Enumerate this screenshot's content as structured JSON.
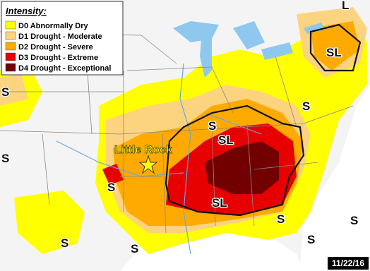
{
  "legend": {
    "title": "Intensity:",
    "items": [
      {
        "label": "D0 Abnormally Dry",
        "color": "#ffff00"
      },
      {
        "label": "D1 Drought - Moderate",
        "color": "#fcd37f"
      },
      {
        "label": "D2 Drought - Severe",
        "color": "#ffaa00"
      },
      {
        "label": "D3 Drought - Extreme",
        "color": "#e60000"
      },
      {
        "label": "D4 Drought - Exceptional",
        "color": "#730000"
      }
    ]
  },
  "city": "Little Rock",
  "area_labels": [
    "L",
    "SL",
    "S",
    "S",
    "S",
    "S",
    "SL",
    "SL",
    "S",
    "S",
    "S",
    "S",
    "S",
    "S"
  ],
  "date": "11/22/16"
}
